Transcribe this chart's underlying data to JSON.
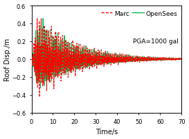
{
  "title": "",
  "xlabel": "Time/s",
  "ylabel": "Roof Disp./m",
  "xlim": [
    0,
    70
  ],
  "ylim": [
    -0.6,
    0.6
  ],
  "xticks": [
    0,
    10,
    20,
    30,
    40,
    50,
    60,
    70
  ],
  "yticks": [
    -0.6,
    -0.4,
    -0.2,
    0.0,
    0.2,
    0.4,
    0.6
  ],
  "marc_color": "#ff0000",
  "opensees_color": "#00bb55",
  "annotation": "PGA=1000 gal",
  "legend_marc": "Marc",
  "legend_opensees": "OpenSees",
  "bg_color": "#ffffff",
  "seed": 7,
  "dt": 0.02,
  "duration": 70,
  "decay": 0.055,
  "peak_amp": 0.52,
  "freqs_marc": [
    1.2,
    2.1,
    3.3,
    4.8,
    6.5
  ],
  "freqs_os": [
    1.2,
    2.1,
    3.3,
    4.8,
    6.5
  ],
  "rise_time": 3.0
}
